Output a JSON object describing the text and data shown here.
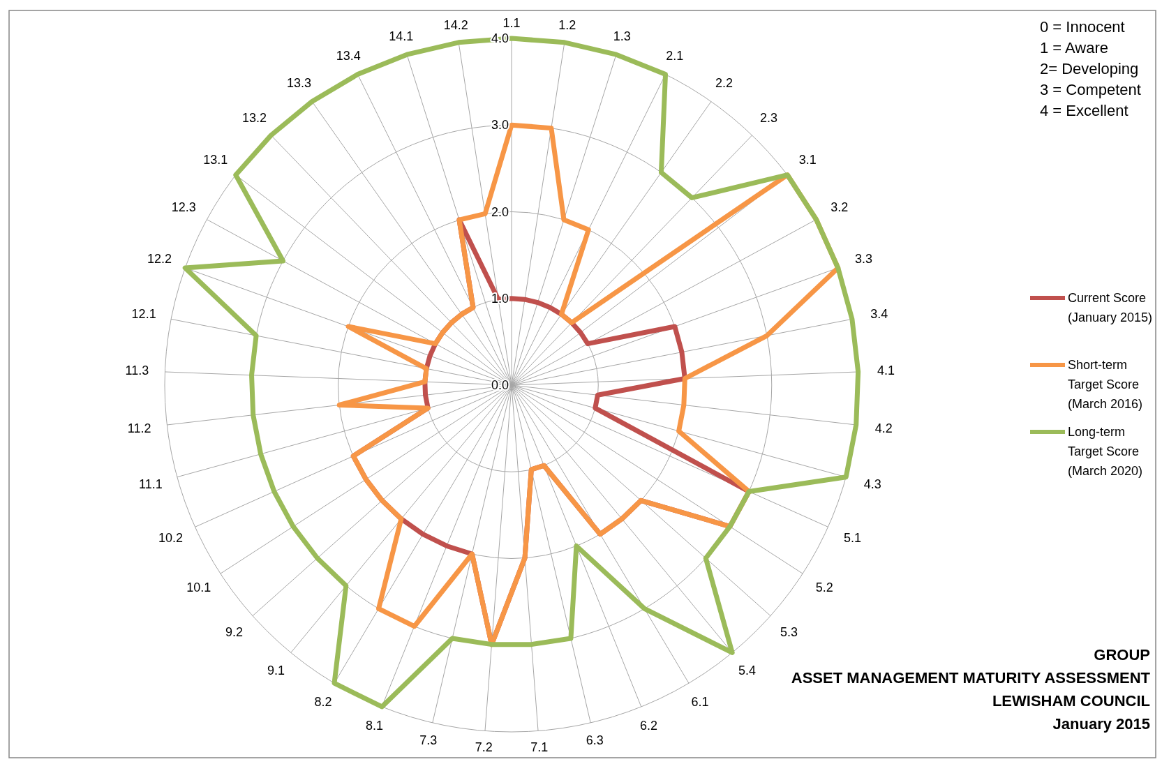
{
  "chart_data": {
    "type": "radar",
    "title": "GROUP",
    "subtitle": "ASSET MANAGEMENT MATURITY ASSESSMENT",
    "annotations": [
      "0 = Innocent",
      "1 = Aware",
      "2= Developing",
      "3 = Competent",
      "4 = Excellent",
      "LEWISHAM COUNCIL",
      "January 2015"
    ],
    "categories": [
      "1.1",
      "1.2",
      "1.3",
      "2.1",
      "2.2",
      "2.3",
      "3.1",
      "3.2",
      "3.3",
      "3.4",
      "4.1",
      "4.2",
      "4.3",
      "5.1",
      "5.2",
      "5.3",
      "5.4",
      "6.1",
      "6.2",
      "6.3",
      "7.1",
      "7.2",
      "7.3",
      "8.1",
      "8.2",
      "9.1",
      "9.2",
      "10.1",
      "10.2",
      "11.1",
      "11.2",
      "11.3",
      "12.1",
      "12.2",
      "12.3",
      "13.1",
      "13.2",
      "13.3",
      "13.4",
      "14.1",
      "14.2"
    ],
    "series": [
      {
        "name": "Current Score (January 2015)",
        "color": "#c0504d",
        "values": [
          1,
          1,
          1,
          1,
          1,
          1,
          1,
          1,
          2,
          2,
          2,
          1,
          1,
          3,
          3,
          2,
          2,
          2,
          1,
          1,
          2,
          3,
          2,
          2,
          2,
          2,
          2,
          2,
          2,
          1,
          1,
          1,
          1,
          1,
          1,
          1,
          1,
          1,
          1,
          2,
          1
        ]
      },
      {
        "name": "Short-term Target Score (March 2016)",
        "color": "#f79646",
        "values": [
          3,
          3,
          2,
          2,
          1,
          1,
          4,
          4,
          4,
          3,
          2,
          2,
          2,
          3,
          3,
          2,
          2,
          2,
          1,
          1,
          2,
          3,
          2,
          3,
          3,
          2,
          2,
          2,
          2,
          1,
          2,
          1,
          1,
          2,
          1,
          1,
          1,
          1,
          1,
          2,
          2
        ]
      },
      {
        "name": "Long-term Target Score (March 2020)",
        "color": "#9bbb59",
        "values": [
          4,
          4,
          4,
          4,
          3,
          3,
          4,
          4,
          4,
          4,
          4,
          4,
          4,
          3,
          3,
          3,
          4,
          3,
          2,
          3,
          3,
          3,
          3,
          4,
          4,
          3,
          3,
          3,
          3,
          3,
          3,
          3,
          3,
          4,
          3,
          4,
          4,
          4,
          4,
          4,
          4
        ]
      }
    ],
    "ylim": [
      0,
      4
    ],
    "yticks": [
      {
        "value": 0,
        "label": "0.0"
      },
      {
        "value": 1,
        "label": "1.0"
      },
      {
        "value": 2,
        "label": "2.0"
      },
      {
        "value": 3,
        "label": "3.0"
      },
      {
        "value": 4,
        "label": "4.0"
      }
    ],
    "grid": true,
    "legend": "right",
    "marker": "none",
    "line_style": "solid"
  }
}
